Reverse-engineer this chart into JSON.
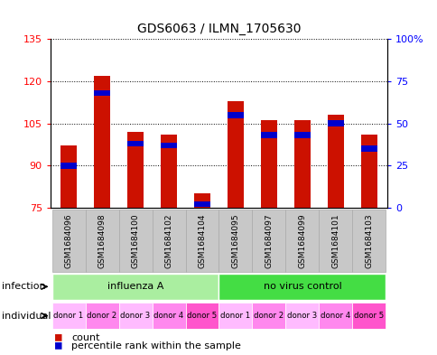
{
  "title": "GDS6063 / ILMN_1705630",
  "samples": [
    "GSM1684096",
    "GSM1684098",
    "GSM1684100",
    "GSM1684102",
    "GSM1684104",
    "GSM1684095",
    "GSM1684097",
    "GSM1684099",
    "GSM1684101",
    "GSM1684103"
  ],
  "count_values": [
    97,
    122,
    102,
    101,
    80,
    113,
    106,
    106,
    108,
    101
  ],
  "percentile_values": [
    25,
    68,
    38,
    37,
    2,
    55,
    43,
    43,
    50,
    35
  ],
  "ylim_left": [
    75,
    135
  ],
  "ylim_right": [
    0,
    100
  ],
  "yticks_left": [
    75,
    90,
    105,
    120,
    135
  ],
  "yticks_right": [
    0,
    25,
    50,
    75,
    100
  ],
  "ytick_labels_right": [
    "0",
    "25",
    "50",
    "75",
    "100%"
  ],
  "infection_labels": [
    "influenza A",
    "no virus control"
  ],
  "infection_colors": [
    "#AAEEA0",
    "#44DD44"
  ],
  "infection_ranges": [
    [
      0,
      5
    ],
    [
      5,
      10
    ]
  ],
  "individual_labels": [
    "donor 1",
    "donor 2",
    "donor 3",
    "donor 4",
    "donor 5",
    "donor 1",
    "donor 2",
    "donor 3",
    "donor 4",
    "donor 5"
  ],
  "individual_colors": [
    "#FFBBFF",
    "#FF88EE",
    "#FFBBFF",
    "#FF88EE",
    "#FF55CC",
    "#FFBBFF",
    "#FF88EE",
    "#FFBBFF",
    "#FF88EE",
    "#FF55CC"
  ],
  "bar_color": "#CC1100",
  "percentile_color": "#0000CC",
  "bar_width": 0.5,
  "base_value": 75,
  "figsize": [
    4.85,
    3.93
  ],
  "dpi": 100
}
